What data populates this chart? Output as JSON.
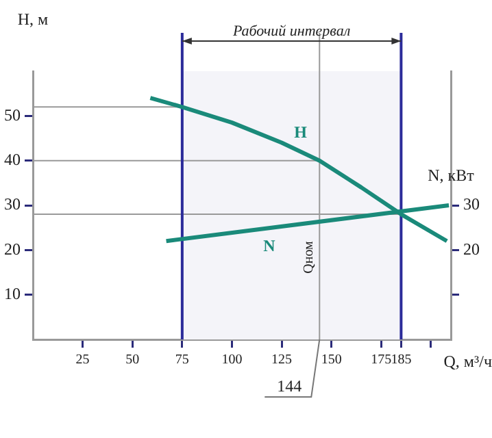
{
  "chart_data": {
    "type": "line",
    "xlabel": "Q, м³/ч",
    "ylabel": "H, м",
    "y2label": "N, кВт",
    "xlim": [
      0,
      210
    ],
    "xticks": [
      25,
      50,
      75,
      100,
      125,
      150,
      175,
      185,
      {
        "value": 200,
        "label": null
      }
    ],
    "ylim": [
      0,
      60
    ],
    "yticks": [
      10,
      20,
      30,
      40,
      50
    ],
    "y2lim": [
      0,
      60
    ],
    "y2ticks": [
      {
        "value": 10,
        "label": null
      },
      20,
      30
    ],
    "series": [
      {
        "name": "H",
        "color": "#1a8a7a",
        "x": [
          59,
          75,
          100,
          125,
          144,
          165,
          185,
          208
        ],
        "values": [
          54,
          52,
          48.5,
          44,
          40,
          34,
          28,
          22
        ]
      },
      {
        "name": "N",
        "color": "#1a8a7a",
        "axis": "y2",
        "x": [
          67,
          209
        ],
        "values": [
          22,
          30
        ]
      }
    ],
    "ref_lines": [
      {
        "axis": "y",
        "value": 52,
        "color": "#999999"
      },
      {
        "axis": "y",
        "value": 40,
        "color": "#999999"
      },
      {
        "axis": "y",
        "value": 28,
        "color": "#999999"
      },
      {
        "axis": "x",
        "value": 75,
        "color": "#2b2b9a"
      },
      {
        "axis": "x",
        "value": 185,
        "color": "#2b2b9a"
      },
      {
        "axis": "x",
        "value": 144,
        "label": "Qном",
        "color": "#999999"
      }
    ],
    "bands": [
      {
        "axis": "x",
        "from": 75,
        "to": 185,
        "label": "Рабочий интервал",
        "color": "#f4f4f9"
      }
    ],
    "annotations": [
      {
        "text": "144",
        "x": 144,
        "y": 0
      }
    ],
    "grid": false,
    "legend": false,
    "marker": "none",
    "line_style": "solid"
  }
}
